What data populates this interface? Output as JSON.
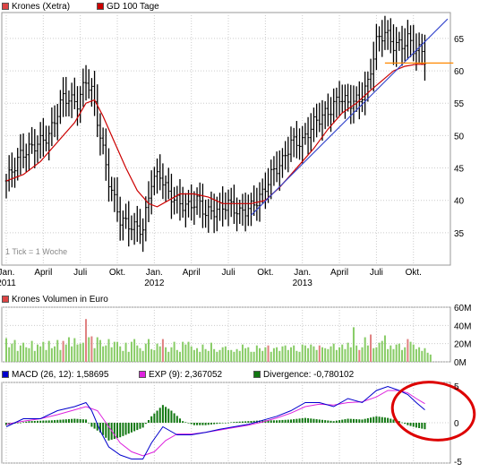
{
  "legend": {
    "price": "Krones (Xetra)",
    "ma": "GD 100 Tage",
    "volume": "Krones Volumen in Euro",
    "macd": "MACD (26, 12): 1,58695",
    "exp": "EXP (9): 2,367052",
    "divergence": "Divergence: -0,780102"
  },
  "tick_note": "1 Tick = 1 Woche",
  "colors": {
    "candle": "#000000",
    "ma": "#cc0000",
    "trend": "#3344cc",
    "support": "#ff8800",
    "vol_up": "#88cc66",
    "vol_down": "#e08080",
    "macd": "#0000cc",
    "exp": "#dd22dd",
    "divergence": "#117711",
    "highlight": "#dd0000",
    "grid": "#cccccc"
  },
  "chart_data": [
    {
      "type": "line",
      "title": "Krones (Xetra)",
      "ylim": [
        30,
        69
      ],
      "y_ticks": [
        35,
        40,
        45,
        50,
        55,
        60,
        65
      ],
      "x_ticks": [
        {
          "label": "Jan.",
          "sub": "2011",
          "t": 0
        },
        {
          "label": "April",
          "sub": "",
          "t": 13
        },
        {
          "label": "Juli",
          "sub": "",
          "t": 26
        },
        {
          "label": "Okt.",
          "sub": "",
          "t": 39
        },
        {
          "label": "Jan.",
          "sub": "2012",
          "t": 52
        },
        {
          "label": "April",
          "sub": "",
          "t": 65
        },
        {
          "label": "Juli",
          "sub": "",
          "t": 78
        },
        {
          "label": "Okt.",
          "sub": "",
          "t": 91
        },
        {
          "label": "Jan.",
          "sub": "2013",
          "t": 104
        },
        {
          "label": "April",
          "sub": "",
          "t": 117
        },
        {
          "label": "Juli",
          "sub": "",
          "t": 130
        },
        {
          "label": "Okt.",
          "sub": "",
          "t": 143
        }
      ],
      "series": [
        {
          "name": "Krones (Xetra)",
          "kind": "weekly-bars",
          "x_weeks": [
            0,
            5,
            10,
            15,
            20,
            25,
            28,
            30,
            33,
            36,
            40,
            44,
            48,
            51,
            54,
            57,
            61,
            64,
            67,
            70,
            74,
            78,
            82,
            86,
            90,
            93,
            97,
            100,
            104,
            108,
            111,
            114,
            117,
            120,
            124,
            127,
            130,
            133,
            136,
            139,
            141,
            143,
            146,
            147
          ],
          "close": [
            43,
            47,
            48.5,
            50,
            56,
            55,
            58.5,
            57,
            50,
            43,
            37,
            36,
            35.5,
            43,
            44,
            41,
            39.5,
            39,
            40,
            38,
            38.5,
            39.5,
            38,
            39,
            41,
            44,
            46,
            49,
            49,
            52,
            53,
            54,
            56,
            55,
            55.5,
            58,
            64.5,
            66,
            64,
            64,
            65,
            63.5,
            63,
            62
          ]
        },
        {
          "name": "GD 100 Tage",
          "x_weeks": [
            0,
            6,
            12,
            18,
            24,
            28,
            31,
            34,
            38,
            42,
            46,
            50,
            53,
            57,
            61,
            66,
            71,
            76,
            81,
            86,
            91,
            96,
            100,
            104,
            108,
            113,
            118,
            123,
            128,
            132,
            136,
            140,
            144,
            147
          ],
          "values": [
            43,
            44,
            46,
            49,
            52,
            55,
            55.5,
            53,
            49,
            45,
            41.5,
            39.5,
            39,
            40,
            41,
            41,
            40.5,
            39.5,
            39.5,
            39.5,
            40,
            42,
            44,
            46,
            48,
            51,
            53.5,
            55,
            57,
            58.5,
            60,
            60.7,
            61,
            61
          ]
        },
        {
          "name": "",
          "kind": "trendline",
          "x_weeks": [
            86,
            155
          ],
          "values": [
            37.7,
            68
          ]
        },
        {
          "name": "",
          "kind": "support",
          "x_weeks": [
            133,
            157
          ],
          "values": [
            61.2,
            61.2
          ]
        }
      ]
    },
    {
      "type": "bar",
      "title": "Krones Volumen in Euro",
      "ylim": [
        0,
        60
      ],
      "y_ticks": [
        0,
        20,
        40,
        60
      ],
      "unit": "M",
      "values": [
        26,
        16,
        20,
        24,
        12,
        18,
        21,
        16,
        15,
        23,
        12,
        19,
        17,
        22,
        13,
        23,
        15,
        17,
        24,
        13,
        23,
        19,
        27,
        17,
        26,
        19,
        20,
        21,
        47,
        27,
        28,
        15,
        27,
        24,
        17,
        18,
        25,
        16,
        22,
        22,
        17,
        12,
        21,
        11,
        22,
        25,
        18,
        15,
        12,
        20,
        25,
        14,
        13,
        20,
        17,
        25,
        16,
        11,
        16,
        22,
        13,
        11,
        22,
        19,
        22,
        17,
        13,
        15,
        11,
        19,
        14,
        12,
        21,
        14,
        11,
        13,
        16,
        17,
        13,
        13,
        11,
        14,
        12,
        19,
        15,
        16,
        11,
        11,
        18,
        15,
        12,
        16,
        18,
        11,
        15,
        16,
        12,
        17,
        18,
        13,
        16,
        18,
        12,
        11,
        19,
        18,
        15,
        19,
        17,
        13,
        18,
        16,
        15,
        14,
        17,
        20,
        13,
        16,
        19,
        14,
        21,
        16,
        38,
        18,
        13,
        16,
        27,
        18,
        30,
        15,
        16,
        21,
        23,
        29,
        14,
        18,
        14,
        19,
        20,
        13,
        16,
        25,
        22,
        19,
        14,
        16,
        12,
        15,
        10,
        8
      ],
      "down_weeks": [
        20,
        28,
        30,
        55,
        92,
        110,
        124,
        128,
        141
      ]
    },
    {
      "type": "line",
      "title": "MACD",
      "ylim": [
        -5,
        5
      ],
      "y_ticks": [
        -5,
        0,
        5
      ],
      "series": [
        {
          "name": "MACD (26, 12): 1,58695",
          "x_weeks": [
            0,
            6,
            12,
            18,
            24,
            28,
            30,
            33,
            36,
            40,
            44,
            48,
            51,
            55,
            60,
            65,
            70,
            75,
            80,
            85,
            90,
            95,
            100,
            105,
            110,
            115,
            120,
            125,
            130,
            134,
            138,
            141,
            144,
            147
          ],
          "values": [
            -0.5,
            0.5,
            0.5,
            1.5,
            2,
            2.5,
            1.5,
            -1,
            -3,
            -4,
            -4.5,
            -4.5,
            -2.5,
            -0.5,
            -1.5,
            -1.5,
            -1.2,
            -0.8,
            -0.5,
            -0.2,
            0.3,
            0.8,
            1.5,
            2.5,
            2.5,
            2,
            3,
            2.5,
            4,
            4.5,
            4,
            3.5,
            2.5,
            1.6
          ]
        },
        {
          "name": "EXP (9): 2,367052",
          "x_weeks": [
            0,
            6,
            12,
            18,
            24,
            28,
            32,
            36,
            40,
            44,
            48,
            52,
            56,
            60,
            65,
            70,
            75,
            80,
            85,
            90,
            95,
            100,
            105,
            110,
            115,
            120,
            125,
            130,
            134,
            138,
            141,
            144,
            147
          ],
          "values": [
            -0.2,
            0.2,
            0.5,
            1,
            1.6,
            2,
            1.5,
            -0.5,
            -2.5,
            -3.6,
            -4.1,
            -3.6,
            -2.2,
            -1.4,
            -1.4,
            -1.2,
            -0.9,
            -0.6,
            -0.3,
            0.1,
            0.6,
            1.2,
            2,
            2.3,
            2.2,
            2.5,
            2.6,
            3.2,
            4,
            4,
            3.7,
            3,
            2.37
          ]
        },
        {
          "name": "Divergence: -0,780102",
          "kind": "histogram",
          "x_weeks": [
            0,
            8,
            16,
            24,
            28,
            30,
            33,
            36,
            40,
            44,
            48,
            51,
            55,
            58,
            62,
            66,
            70,
            75,
            80,
            85,
            90,
            95,
            100,
            105,
            110,
            115,
            120,
            125,
            130,
            134,
            138,
            141,
            144,
            147
          ],
          "values": [
            -0.3,
            0.2,
            0.3,
            0.5,
            0.4,
            -0.5,
            -1.2,
            -2.2,
            -1.8,
            -1.2,
            -0.6,
            0.8,
            2.2,
            1.5,
            0.2,
            -0.3,
            -0.3,
            -0.1,
            0.1,
            0.2,
            0.3,
            0.3,
            0.4,
            0.6,
            0.4,
            0.2,
            0.5,
            0.4,
            0.8,
            0.6,
            0.2,
            -0.3,
            -0.6,
            -0.8
          ]
        }
      ]
    }
  ]
}
